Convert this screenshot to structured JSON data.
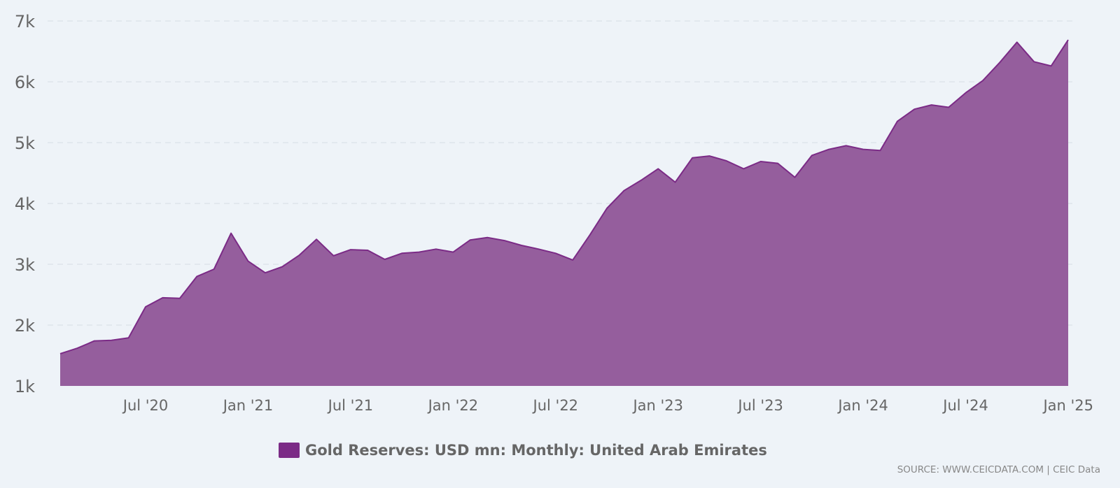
{
  "chart_data": {
    "type": "area",
    "title": "",
    "xlabel": "",
    "ylabel": "",
    "ylim": [
      1000,
      7000
    ],
    "y_ticks": [
      {
        "value": 1000,
        "label": "1k"
      },
      {
        "value": 2000,
        "label": "2k"
      },
      {
        "value": 3000,
        "label": "3k"
      },
      {
        "value": 4000,
        "label": "4k"
      },
      {
        "value": 5000,
        "label": "5k"
      },
      {
        "value": 6000,
        "label": "6k"
      },
      {
        "value": 7000,
        "label": "7k"
      }
    ],
    "x_ticks": [
      {
        "date": "2020-07",
        "label": "Jul '20"
      },
      {
        "date": "2021-01",
        "label": "Jan '21"
      },
      {
        "date": "2021-07",
        "label": "Jul '21"
      },
      {
        "date": "2022-01",
        "label": "Jan '22"
      },
      {
        "date": "2022-07",
        "label": "Jul '22"
      },
      {
        "date": "2023-01",
        "label": "Jan '23"
      },
      {
        "date": "2023-07",
        "label": "Jul '23"
      },
      {
        "date": "2024-01",
        "label": "Jan '24"
      },
      {
        "date": "2024-07",
        "label": "Jul '24"
      },
      {
        "date": "2025-01",
        "label": "Jan '25"
      }
    ],
    "grid": true,
    "legend_position": "bottom-center",
    "series": [
      {
        "name": "Gold Reserves: USD mn: Monthly: United Arab Emirates",
        "color": "#7b2b86",
        "fill_color": "#955e9d",
        "x": [
          "2020-02",
          "2020-03",
          "2020-04",
          "2020-05",
          "2020-06",
          "2020-07",
          "2020-08",
          "2020-09",
          "2020-10",
          "2020-11",
          "2020-12",
          "2021-01",
          "2021-02",
          "2021-03",
          "2021-04",
          "2021-05",
          "2021-06",
          "2021-07",
          "2021-08",
          "2021-09",
          "2021-10",
          "2021-11",
          "2021-12",
          "2022-01",
          "2022-02",
          "2022-03",
          "2022-04",
          "2022-05",
          "2022-06",
          "2022-07",
          "2022-08",
          "2022-09",
          "2022-10",
          "2022-11",
          "2022-12",
          "2023-01",
          "2023-02",
          "2023-03",
          "2023-04",
          "2023-05",
          "2023-06",
          "2023-07",
          "2023-08",
          "2023-09",
          "2023-10",
          "2023-11",
          "2023-12",
          "2024-01",
          "2024-02",
          "2024-03",
          "2024-04",
          "2024-05",
          "2024-06",
          "2024-07",
          "2024-08",
          "2024-09",
          "2024-10",
          "2024-11",
          "2024-12",
          "2025-01"
        ],
        "values": [
          1530,
          1620,
          1740,
          1750,
          1790,
          2300,
          2450,
          2440,
          2800,
          2920,
          3510,
          3050,
          2860,
          2960,
          3150,
          3410,
          3140,
          3240,
          3230,
          3080,
          3180,
          3200,
          3250,
          3200,
          3400,
          3440,
          3390,
          3310,
          3250,
          3180,
          3070,
          3480,
          3920,
          4210,
          4380,
          4570,
          4350,
          4750,
          4780,
          4700,
          4570,
          4690,
          4660,
          4430,
          4790,
          4890,
          4950,
          4890,
          4870,
          5350,
          5550,
          5620,
          5580,
          5820,
          6020,
          6320,
          6650,
          6330,
          6260,
          6690
        ]
      }
    ]
  },
  "footer": {
    "source_text": "SOURCE: WWW.CEICDATA.COM | CEIC Data"
  }
}
